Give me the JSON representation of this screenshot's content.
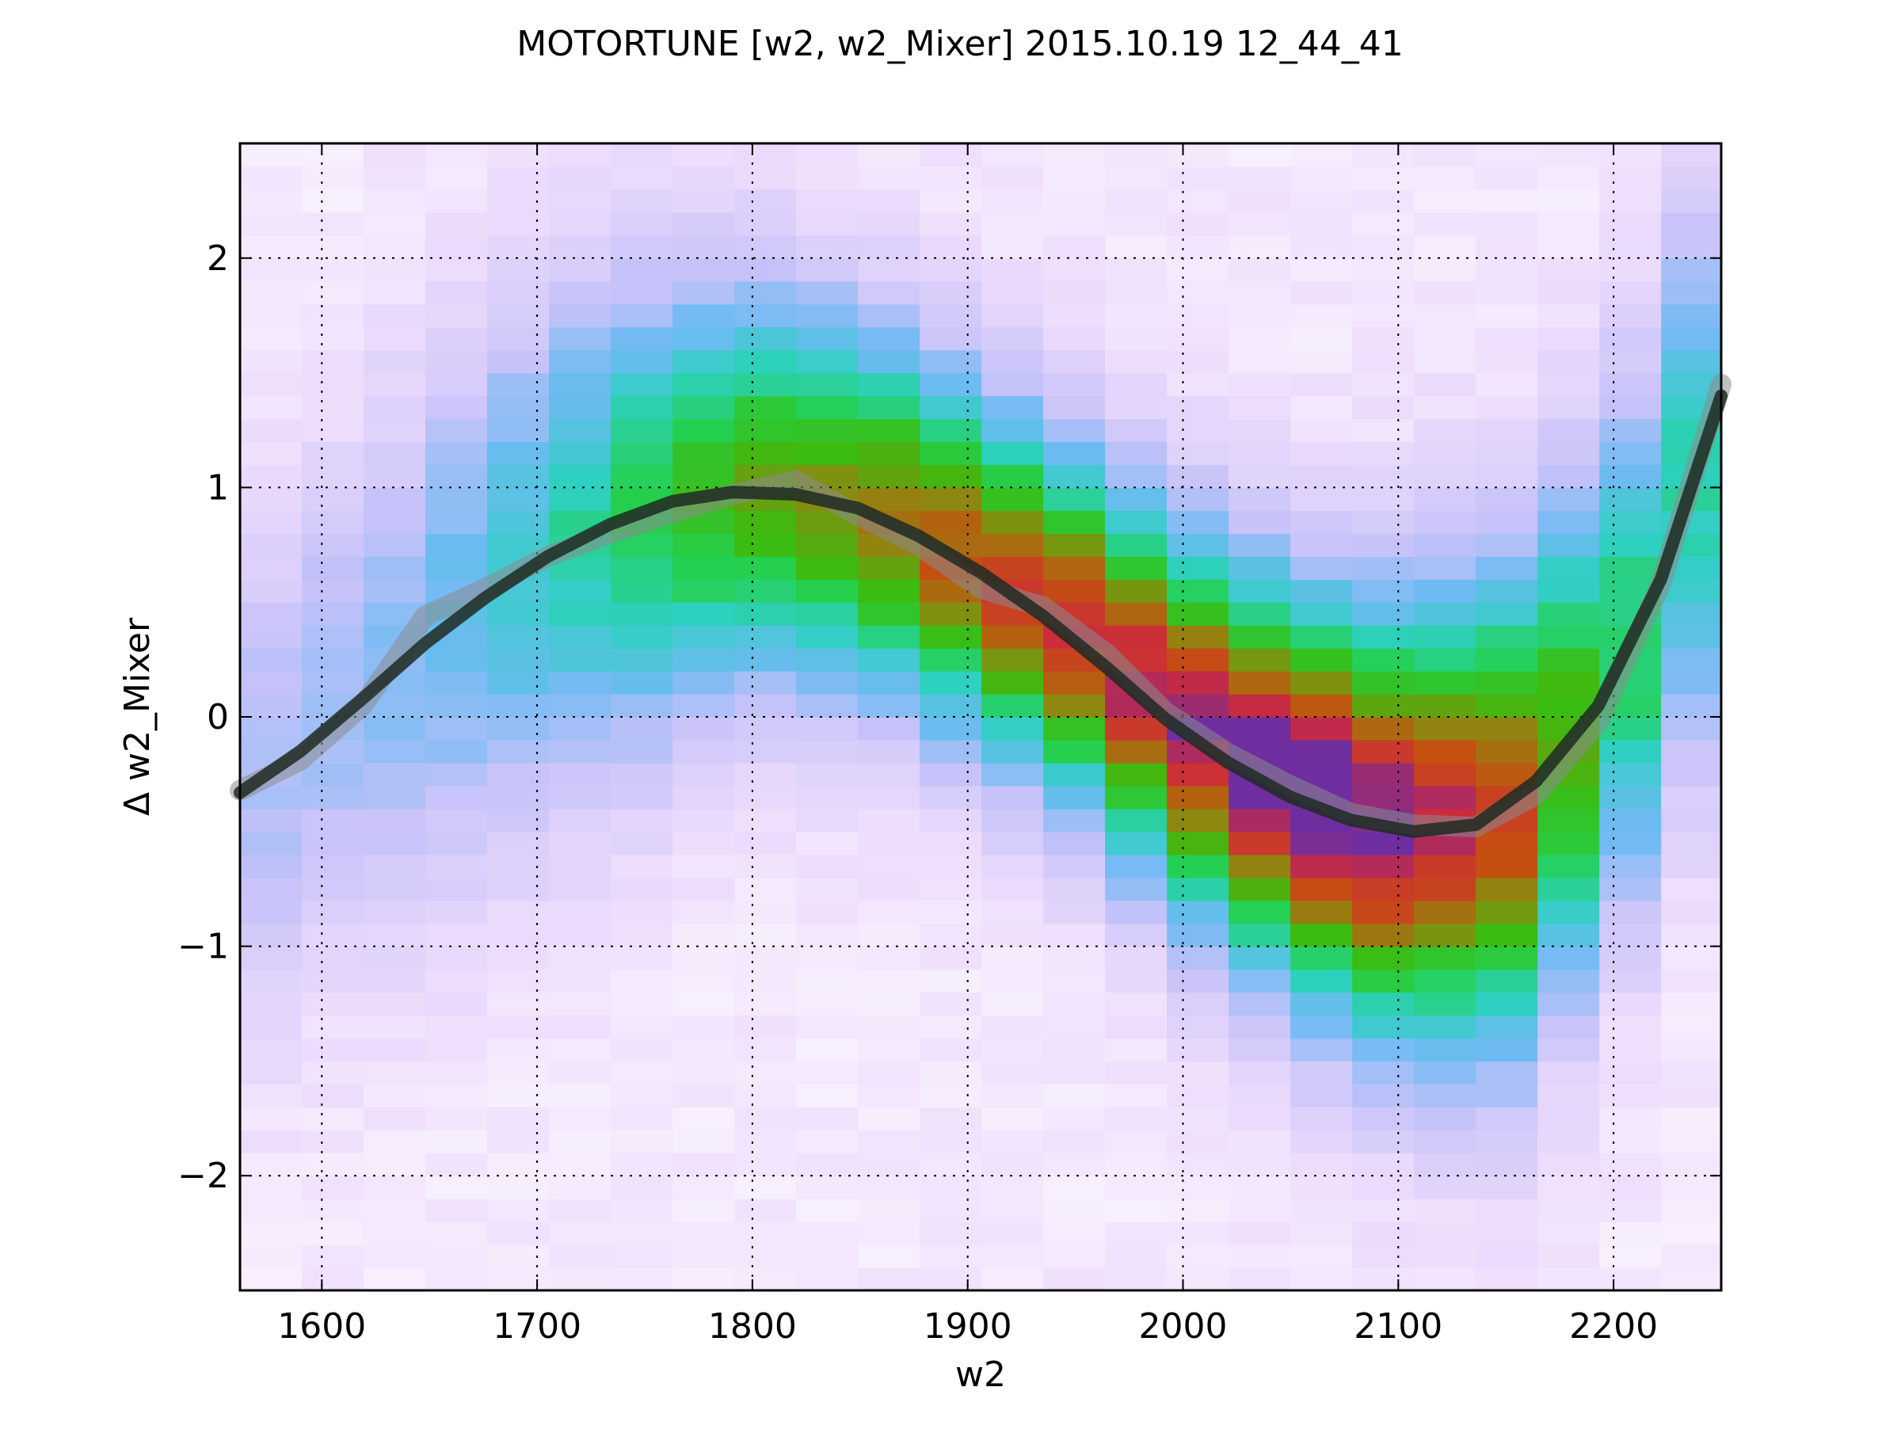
{
  "chart_data": {
    "type": "heatmap",
    "title": "MOTORTUNE [w2, w2_Mixer] 2015.10.19 12_44_41",
    "xlabel": "w2",
    "ylabel": "Δ w2_Mixer",
    "xlim": [
      1562,
      2250
    ],
    "ylim": [
      -2.5,
      2.5
    ],
    "xticks": [
      1600,
      1700,
      1800,
      1900,
      2000,
      2100,
      2200
    ],
    "yticks": [
      -2,
      -1,
      0,
      1,
      2
    ],
    "xtick_labels": [
      "1600",
      "1700",
      "1800",
      "1900",
      "2000",
      "2100",
      "2200"
    ],
    "ytick_labels": [
      "−2",
      "−1",
      "0",
      "1",
      "2"
    ],
    "grid": true,
    "heatmap": {
      "x_bin_width": 28.7,
      "y_bin_width": 0.1,
      "colorscale": [
        {
          "stop": 0.0,
          "color": "#ffffff"
        },
        {
          "stop": 0.12,
          "color": "#eedcfc"
        },
        {
          "stop": 0.27,
          "color": "#c6c2f9"
        },
        {
          "stop": 0.4,
          "color": "#6fbaf3"
        },
        {
          "stop": 0.52,
          "color": "#2ed0c1"
        },
        {
          "stop": 0.63,
          "color": "#24d04f"
        },
        {
          "stop": 0.72,
          "color": "#3cbb10"
        },
        {
          "stop": 0.8,
          "color": "#8b8a10"
        },
        {
          "stop": 0.88,
          "color": "#c55010"
        },
        {
          "stop": 0.94,
          "color": "#cc2a3e"
        },
        {
          "stop": 1.0,
          "color": "#6f2ea0"
        }
      ],
      "band_center_x": [
        1562,
        1600,
        1650,
        1700,
        1750,
        1800,
        1850,
        1900,
        1950,
        2000,
        2050,
        2100,
        2150,
        2200,
        2250
      ],
      "band_center_y": [
        -0.35,
        0.0,
        0.35,
        0.7,
        0.88,
        1.0,
        0.92,
        0.68,
        0.38,
        0.0,
        -0.32,
        -0.5,
        -0.42,
        0.12,
        1.3
      ],
      "band_halfwidth_y": [
        1.1,
        1.15,
        1.2,
        1.2,
        1.1,
        0.95,
        0.9,
        0.85,
        0.85,
        0.9,
        0.95,
        1.05,
        1.15,
        1.2,
        1.3
      ],
      "band_intensity": [
        0.22,
        0.24,
        0.3,
        0.42,
        0.55,
        0.66,
        0.72,
        0.8,
        0.85,
        0.9,
        0.98,
        0.92,
        0.82,
        0.55,
        0.42
      ]
    },
    "series": [
      {
        "x": [
          1562,
          1590,
          1619,
          1648,
          1676,
          1705,
          1734,
          1763,
          1791,
          1820,
          1849,
          1877,
          1906,
          1935,
          1964,
          1992,
          2021,
          2050,
          2078,
          2107,
          2136,
          2164,
          2193,
          2222,
          2250
        ],
        "y": [
          -0.33,
          -0.15,
          0.08,
          0.32,
          0.52,
          0.7,
          0.84,
          0.94,
          0.98,
          0.97,
          0.91,
          0.79,
          0.63,
          0.44,
          0.22,
          -0.01,
          -0.2,
          -0.35,
          -0.45,
          -0.5,
          -0.47,
          -0.28,
          0.05,
          0.6,
          1.4
        ],
        "color": "#1f2a22"
      }
    ],
    "raw_series": {
      "x": [
        1562,
        1590,
        1619,
        1648,
        1676,
        1705,
        1734,
        1763,
        1791,
        1820,
        1849,
        1877,
        1906,
        1935,
        1964,
        1992,
        2021,
        2050,
        2078,
        2107,
        2136,
        2164,
        2193,
        2222,
        2250
      ],
      "y": [
        -0.32,
        -0.19,
        0.05,
        0.44,
        0.56,
        0.7,
        0.8,
        0.89,
        0.97,
        1.03,
        0.88,
        0.75,
        0.56,
        0.48,
        0.28,
        0.02,
        -0.16,
        -0.3,
        -0.42,
        -0.47,
        -0.48,
        -0.34,
        -0.02,
        0.58,
        1.45
      ],
      "color": "#8a8a90"
    }
  }
}
